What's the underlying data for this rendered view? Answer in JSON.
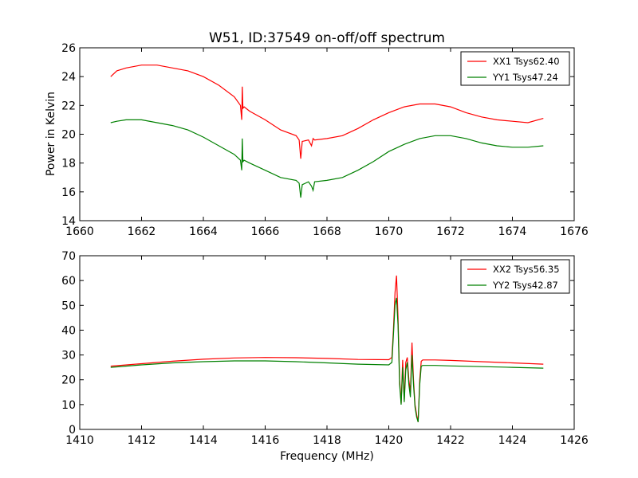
{
  "chart_data": [
    {
      "type": "line",
      "title": "W51, ID:37549 on-off/off spectrum",
      "xlabel": "",
      "ylabel": "Power in Kelvin",
      "xlim": [
        1660,
        1676
      ],
      "ylim": [
        14,
        26
      ],
      "xticks": [
        1660,
        1662,
        1664,
        1666,
        1668,
        1670,
        1672,
        1674,
        1676
      ],
      "yticks": [
        14,
        16,
        18,
        20,
        22,
        24,
        26
      ],
      "legend": "upper right",
      "grid": false,
      "series": [
        {
          "name": "XX1 Tsys62.40",
          "color": "#ff0000",
          "x": [
            1661.0,
            1661.2,
            1661.5,
            1662.0,
            1662.5,
            1663.0,
            1663.5,
            1664.0,
            1664.5,
            1665.0,
            1665.2,
            1665.24,
            1665.26,
            1665.28,
            1665.32,
            1665.5,
            1666.0,
            1666.5,
            1667.0,
            1667.1,
            1667.15,
            1667.2,
            1667.4,
            1667.5,
            1667.55,
            1667.6,
            1668.0,
            1668.5,
            1669.0,
            1669.5,
            1670.0,
            1670.5,
            1671.0,
            1671.5,
            1672.0,
            1672.5,
            1673.0,
            1673.5,
            1674.0,
            1674.5,
            1675.0
          ],
          "y": [
            24.0,
            24.4,
            24.6,
            24.8,
            24.8,
            24.6,
            24.4,
            24.0,
            23.4,
            22.6,
            22.0,
            21.0,
            23.3,
            21.8,
            21.9,
            21.6,
            21.0,
            20.3,
            19.9,
            19.6,
            18.3,
            19.5,
            19.6,
            19.2,
            19.7,
            19.6,
            19.7,
            19.9,
            20.4,
            21.0,
            21.5,
            21.9,
            22.1,
            22.1,
            21.9,
            21.5,
            21.2,
            21.0,
            20.9,
            20.8,
            21.1
          ]
        },
        {
          "name": "YY1 Tsys47.24",
          "color": "#008000",
          "x": [
            1661.0,
            1661.2,
            1661.5,
            1662.0,
            1662.5,
            1663.0,
            1663.5,
            1664.0,
            1664.5,
            1665.0,
            1665.2,
            1665.24,
            1665.26,
            1665.28,
            1665.32,
            1665.5,
            1666.0,
            1666.5,
            1667.0,
            1667.1,
            1667.15,
            1667.2,
            1667.4,
            1667.5,
            1667.55,
            1667.6,
            1668.0,
            1668.5,
            1669.0,
            1669.5,
            1670.0,
            1670.5,
            1671.0,
            1671.5,
            1672.0,
            1672.5,
            1673.0,
            1673.5,
            1674.0,
            1674.5,
            1675.0
          ],
          "y": [
            20.8,
            20.9,
            21.0,
            21.0,
            20.8,
            20.6,
            20.3,
            19.8,
            19.2,
            18.6,
            18.2,
            17.5,
            19.7,
            18.1,
            18.2,
            18.0,
            17.5,
            17.0,
            16.8,
            16.6,
            15.6,
            16.5,
            16.7,
            16.4,
            16.1,
            16.7,
            16.8,
            17.0,
            17.5,
            18.1,
            18.8,
            19.3,
            19.7,
            19.9,
            19.9,
            19.7,
            19.4,
            19.2,
            19.1,
            19.1,
            19.2
          ]
        }
      ]
    },
    {
      "type": "line",
      "title": "",
      "xlabel": "Frequency (MHz)",
      "ylabel": "",
      "xlim": [
        1410,
        1426
      ],
      "ylim": [
        0,
        70
      ],
      "xticks": [
        1410,
        1412,
        1414,
        1416,
        1418,
        1420,
        1422,
        1424,
        1426
      ],
      "yticks": [
        0,
        10,
        20,
        30,
        40,
        50,
        60,
        70
      ],
      "legend": "upper right",
      "grid": false,
      "series": [
        {
          "name": "XX2 Tsys56.35",
          "color": "#ff0000",
          "x": [
            1411.0,
            1412.0,
            1413.0,
            1414.0,
            1415.0,
            1416.0,
            1417.0,
            1418.0,
            1419.0,
            1420.0,
            1420.1,
            1420.15,
            1420.2,
            1420.25,
            1420.3,
            1420.35,
            1420.4,
            1420.45,
            1420.5,
            1420.55,
            1420.6,
            1420.65,
            1420.7,
            1420.75,
            1420.8,
            1420.85,
            1420.9,
            1420.95,
            1421.0,
            1421.05,
            1421.1,
            1421.5,
            1422.0,
            1423.0,
            1424.0,
            1425.0
          ],
          "y": [
            25.5,
            26.5,
            27.5,
            28.3,
            28.8,
            29.0,
            28.9,
            28.6,
            28.2,
            28.1,
            29.0,
            40.0,
            55.0,
            62.0,
            45.0,
            20.0,
            10.5,
            28.0,
            12.0,
            27.0,
            29.0,
            20.0,
            15.0,
            35.0,
            20.0,
            10.0,
            6.0,
            3.0,
            20.0,
            27.5,
            28.0,
            28.0,
            27.8,
            27.3,
            26.8,
            26.3
          ]
        },
        {
          "name": "YY2 Tsys42.87",
          "color": "#008000",
          "x": [
            1411.0,
            1412.0,
            1413.0,
            1414.0,
            1415.0,
            1416.0,
            1417.0,
            1418.0,
            1419.0,
            1420.0,
            1420.1,
            1420.15,
            1420.2,
            1420.25,
            1420.3,
            1420.35,
            1420.4,
            1420.45,
            1420.5,
            1420.55,
            1420.6,
            1420.65,
            1420.7,
            1420.75,
            1420.8,
            1420.85,
            1420.9,
            1420.95,
            1421.0,
            1421.05,
            1421.1,
            1421.5,
            1422.0,
            1423.0,
            1424.0,
            1425.0
          ],
          "y": [
            25.0,
            26.0,
            26.8,
            27.3,
            27.6,
            27.6,
            27.3,
            26.8,
            26.3,
            26.0,
            27.0,
            38.0,
            50.0,
            53.0,
            42.0,
            18.0,
            10.0,
            25.0,
            11.0,
            24.0,
            27.0,
            18.0,
            13.0,
            30.0,
            18.0,
            9.0,
            5.0,
            3.0,
            18.0,
            25.5,
            25.8,
            25.8,
            25.6,
            25.3,
            25.0,
            24.7
          ]
        }
      ]
    }
  ]
}
